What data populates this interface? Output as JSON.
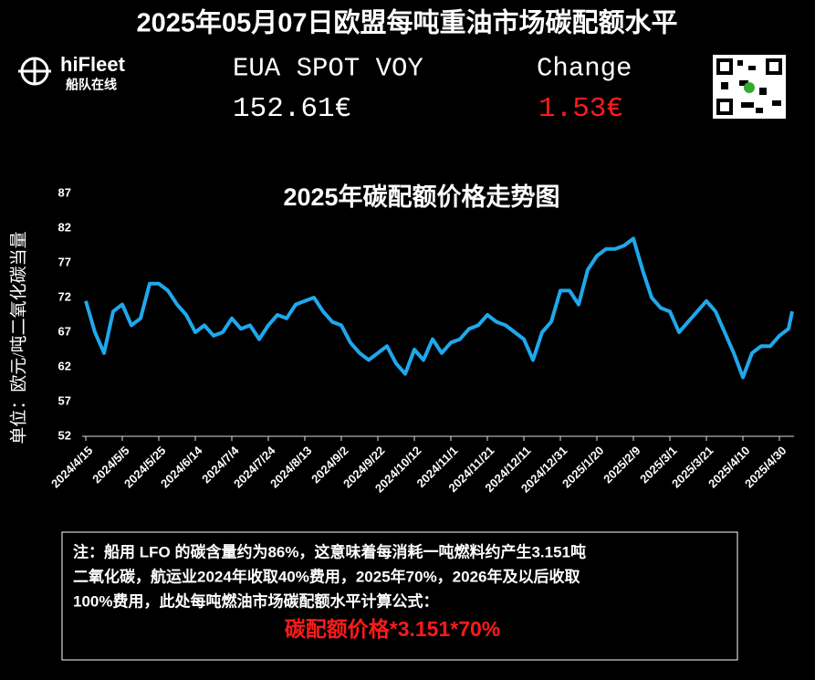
{
  "header": {
    "title": "2025年05月07日欧盟每吨重油市场碳配额水平",
    "logo": "hiFleet",
    "logo_sub": "船队在线",
    "price_label": "EUA SPOT VOY",
    "price": "152.61€",
    "change_label": "Change",
    "change": "1.53€"
  },
  "chart_data": {
    "type": "line",
    "title": "2025年碳配额价格走势图",
    "y_label": "单位：欧元/吨二氧化碳当量",
    "color": "#1fa8ec",
    "grid": false,
    "x": [
      "2024/4/15",
      "2024/4/20",
      "2024/4/25",
      "2024/4/30",
      "2024/5/5",
      "2024/5/10",
      "2024/5/15",
      "2024/5/20",
      "2024/5/25",
      "2024/5/30",
      "2024/6/4",
      "2024/6/9",
      "2024/6/14",
      "2024/6/19",
      "2024/6/24",
      "2024/6/29",
      "2024/7/4",
      "2024/7/9",
      "2024/7/14",
      "2024/7/19",
      "2024/7/24",
      "2024/7/29",
      "2024/8/3",
      "2024/8/8",
      "2024/8/13",
      "2024/8/18",
      "2024/8/23",
      "2024/8/28",
      "2024/9/2",
      "2024/9/7",
      "2024/9/12",
      "2024/9/17",
      "2024/9/22",
      "2024/9/27",
      "2024/10/2",
      "2024/10/7",
      "2024/10/12",
      "2024/10/17",
      "2024/10/22",
      "2024/10/27",
      "2024/11/1",
      "2024/11/6",
      "2024/11/11",
      "2024/11/16",
      "2024/11/21",
      "2024/11/26",
      "2024/12/1",
      "2024/12/6",
      "2024/12/11",
      "2024/12/16",
      "2024/12/21",
      "2024/12/26",
      "2024/12/31",
      "2025/1/5",
      "2025/1/10",
      "2025/1/15",
      "2025/1/20",
      "2025/1/25",
      "2025/1/30",
      "2025/2/4",
      "2025/2/9",
      "2025/2/14",
      "2025/2/19",
      "2025/2/24",
      "2025/3/1",
      "2025/3/6",
      "2025/3/11",
      "2025/3/16",
      "2025/3/21",
      "2025/3/26",
      "2025/3/31",
      "2025/4/5",
      "2025/4/10",
      "2025/4/15",
      "2025/4/20",
      "2025/4/25",
      "2025/4/30",
      "2025/5/5",
      "2025/5/7"
    ],
    "values": [
      71.5,
      67,
      64,
      70,
      71,
      68,
      69,
      74,
      74,
      73,
      71,
      69.5,
      67,
      68,
      66.5,
      67,
      69,
      67.5,
      68,
      66,
      68,
      69.5,
      69,
      71,
      71.5,
      72,
      70,
      68.5,
      68,
      65.5,
      64,
      63,
      64,
      65,
      62.5,
      61,
      64.5,
      63,
      66,
      64,
      65.5,
      66,
      67.5,
      68,
      69.5,
      68.5,
      68,
      67,
      66,
      63,
      67,
      68.5,
      73,
      73,
      71,
      76,
      78,
      79,
      79,
      79.5,
      80.5,
      76,
      72,
      70.5,
      70,
      67,
      68.5,
      70,
      71.5,
      70,
      67,
      64,
      60.5,
      64,
      65,
      65,
      66.5,
      67.5,
      70
    ],
    "xlim": [
      "2024/4/15",
      "2025/5/7"
    ],
    "xticks": [
      "2024/4/15",
      "2024/5/5",
      "2024/5/25",
      "2024/6/14",
      "2024/7/4",
      "2024/7/24",
      "2024/8/13",
      "2024/9/2",
      "2024/9/22",
      "2024/10/12",
      "2024/11/1",
      "2024/11/21",
      "2024/12/11",
      "2024/12/31",
      "2025/1/20",
      "2025/2/9",
      "2025/3/1",
      "2025/3/21",
      "2025/4/10",
      "2025/4/30"
    ],
    "ylim": [
      52,
      87
    ],
    "yticks": [
      52,
      57,
      62,
      67,
      72,
      77,
      82,
      87
    ]
  },
  "note": {
    "lines": [
      "注：船用 LFO 的碳含量约为86%，这意味着每消耗一吨燃料约产生3.151吨",
      "二氧化碳，航运业2024年收取40%费用，2025年70%，2026年及以后收取",
      "100%费用，此处每吨燃油市场碳配额水平计算公式："
    ],
    "formula": "碳配额价格*3.151*70%"
  }
}
